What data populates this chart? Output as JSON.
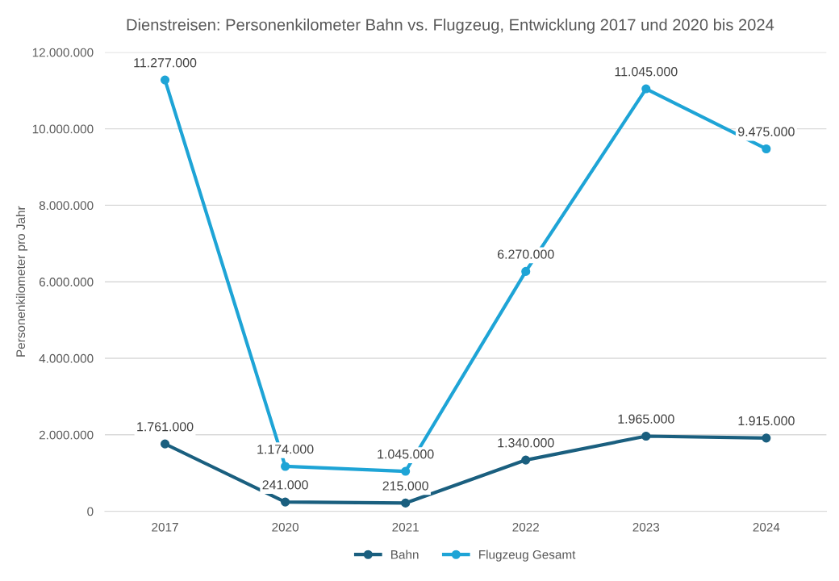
{
  "chart_data": {
    "type": "line",
    "title": "Dienstreisen: Personenkilometer Bahn vs. Flugzeug, Entwicklung 2017 und 2020 bis 2024",
    "ylabel": "Personenkilometer pro Jahr",
    "categories": [
      "2017",
      "2020",
      "2021",
      "2022",
      "2023",
      "2024"
    ],
    "series": [
      {
        "name": "Bahn",
        "color": "#1a5f7f",
        "values": [
          1761000,
          241000,
          215000,
          1340000,
          1965000,
          1915000
        ],
        "value_labels": [
          "1.761.000",
          "241.000",
          "215.000",
          "1.340.000",
          "1.965.000",
          "1.915.000"
        ]
      },
      {
        "name": "Flugzeug Gesamt",
        "color": "#1ea4d6",
        "values": [
          11277000,
          1174000,
          1045000,
          6270000,
          11045000,
          9475000
        ],
        "value_labels": [
          "11.277.000",
          "1.174.000",
          "1.045.000",
          "6.270.000",
          "11.045.000",
          "9.475.000"
        ]
      }
    ],
    "ylim": [
      0,
      12000000
    ],
    "yticks": [
      {
        "value": 0,
        "label": "0"
      },
      {
        "value": 2000000,
        "label": "2.000.000"
      },
      {
        "value": 4000000,
        "label": "4.000.000"
      },
      {
        "value": 6000000,
        "label": "6.000.000"
      },
      {
        "value": 8000000,
        "label": "8.000.000"
      },
      {
        "value": 10000000,
        "label": "10.000.000"
      },
      {
        "value": 12000000,
        "label": "12.000.000"
      }
    ],
    "grid": "y",
    "legend": "bottom",
    "marker": "circle",
    "line_style": "solid"
  }
}
